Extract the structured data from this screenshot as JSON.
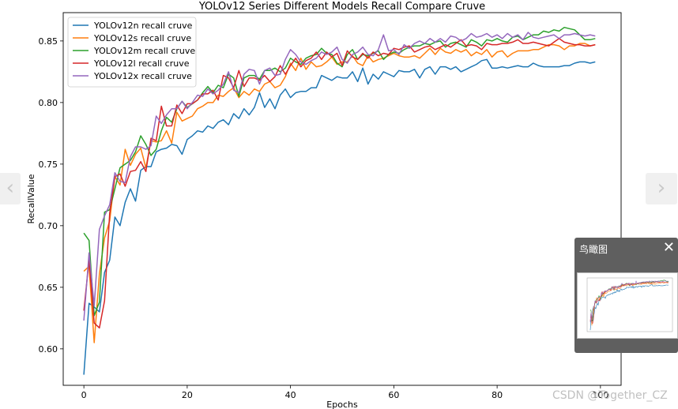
{
  "chart_data": {
    "type": "line",
    "title": "YOLOv12 Series Different Models Recall Compare Cruve",
    "xlabel": "Epochs",
    "ylabel": "RecallValue",
    "xlim": [
      -4,
      104
    ],
    "ylim": [
      0.5704,
      0.873
    ],
    "xticks": [
      0,
      20,
      40,
      60,
      80,
      100
    ],
    "yticks": [
      0.6,
      0.65,
      0.7,
      0.75,
      0.8,
      0.85
    ],
    "ytick_labels": [
      "0.60",
      "0.65",
      "0.70",
      "0.75",
      "0.80",
      "0.85"
    ],
    "grid": false,
    "legend_position": "upper-left",
    "series": [
      {
        "name": "YOLOv12n recall cruve",
        "color": "#1f77b4",
        "values": [
          0.579,
          0.637,
          0.634,
          0.63,
          0.662,
          0.672,
          0.707,
          0.7,
          0.719,
          0.73,
          0.72,
          0.745,
          0.748,
          0.748,
          0.76,
          0.762,
          0.763,
          0.766,
          0.765,
          0.758,
          0.77,
          0.773,
          0.777,
          0.776,
          0.781,
          0.779,
          0.784,
          0.786,
          0.782,
          0.791,
          0.787,
          0.795,
          0.79,
          0.796,
          0.808,
          0.796,
          0.803,
          0.795,
          0.806,
          0.811,
          0.804,
          0.808,
          0.809,
          0.809,
          0.812,
          0.812,
          0.822,
          0.82,
          0.818,
          0.821,
          0.82,
          0.82,
          0.825,
          0.817,
          0.828,
          0.815,
          0.823,
          0.819,
          0.825,
          0.823,
          0.821,
          0.826,
          0.825,
          0.825,
          0.827,
          0.82,
          0.827,
          0.829,
          0.823,
          0.829,
          0.829,
          0.827,
          0.829,
          0.825,
          0.827,
          0.829,
          0.831,
          0.834,
          0.835,
          0.828,
          0.828,
          0.829,
          0.828,
          0.829,
          0.83,
          0.829,
          0.829,
          0.832,
          0.83,
          0.829,
          0.829,
          0.829,
          0.829,
          0.83,
          0.83,
          0.832,
          0.833,
          0.833,
          0.832,
          0.833
        ]
      },
      {
        "name": "YOLOv12s recall cruve",
        "color": "#ff7f0e",
        "values": [
          0.663,
          0.667,
          0.605,
          0.661,
          0.69,
          0.704,
          0.74,
          0.733,
          0.762,
          0.749,
          0.758,
          0.763,
          0.747,
          0.769,
          0.768,
          0.769,
          0.777,
          0.767,
          0.792,
          0.785,
          0.787,
          0.789,
          0.795,
          0.797,
          0.8,
          0.8,
          0.806,
          0.805,
          0.809,
          0.812,
          0.804,
          0.809,
          0.806,
          0.811,
          0.809,
          0.815,
          0.817,
          0.812,
          0.814,
          0.821,
          0.832,
          0.826,
          0.836,
          0.827,
          0.833,
          0.829,
          0.83,
          0.833,
          0.837,
          0.831,
          0.833,
          0.833,
          0.838,
          0.832,
          0.83,
          0.838,
          0.833,
          0.835,
          0.836,
          0.838,
          0.84,
          0.838,
          0.837,
          0.837,
          0.838,
          0.836,
          0.84,
          0.844,
          0.839,
          0.844,
          0.841,
          0.84,
          0.843,
          0.841,
          0.843,
          0.838,
          0.841,
          0.839,
          0.843,
          0.837,
          0.841,
          0.842,
          0.837,
          0.84,
          0.842,
          0.842,
          0.842,
          0.843,
          0.843,
          0.845,
          0.847,
          0.847,
          0.846,
          0.843,
          0.846,
          0.846,
          0.848,
          0.848,
          0.846,
          0.847
        ]
      },
      {
        "name": "YOLOv12m recall cruve",
        "color": "#2ca02c",
        "values": [
          0.694,
          0.688,
          0.627,
          0.638,
          0.711,
          0.713,
          0.73,
          0.747,
          0.75,
          0.753,
          0.76,
          0.773,
          0.766,
          0.757,
          0.762,
          0.777,
          0.788,
          0.784,
          0.795,
          0.801,
          0.796,
          0.799,
          0.802,
          0.808,
          0.813,
          0.808,
          0.814,
          0.812,
          0.823,
          0.82,
          0.805,
          0.82,
          0.822,
          0.822,
          0.819,
          0.826,
          0.826,
          0.828,
          0.825,
          0.828,
          0.836,
          0.833,
          0.831,
          0.836,
          0.838,
          0.839,
          0.844,
          0.84,
          0.839,
          0.832,
          0.829,
          0.839,
          0.843,
          0.835,
          0.839,
          0.838,
          0.84,
          0.842,
          0.835,
          0.839,
          0.841,
          0.84,
          0.843,
          0.845,
          0.846,
          0.846,
          0.848,
          0.847,
          0.849,
          0.85,
          0.845,
          0.848,
          0.849,
          0.847,
          0.845,
          0.851,
          0.849,
          0.846,
          0.851,
          0.85,
          0.852,
          0.85,
          0.849,
          0.853,
          0.854,
          0.851,
          0.853,
          0.855,
          0.855,
          0.858,
          0.857,
          0.859,
          0.858,
          0.861,
          0.86,
          0.859,
          0.855,
          0.851,
          0.851,
          0.852
        ]
      },
      {
        "name": "YOLOv12l recall cruve",
        "color": "#d62728",
        "values": [
          0.631,
          0.672,
          0.621,
          0.617,
          0.639,
          0.71,
          0.74,
          0.742,
          0.732,
          0.744,
          0.745,
          0.752,
          0.744,
          0.771,
          0.769,
          0.797,
          0.781,
          0.781,
          0.798,
          0.791,
          0.799,
          0.799,
          0.802,
          0.807,
          0.807,
          0.81,
          0.802,
          0.822,
          0.82,
          0.812,
          0.826,
          0.813,
          0.82,
          0.82,
          0.818,
          0.822,
          0.817,
          0.821,
          0.83,
          0.823,
          0.83,
          0.836,
          0.829,
          0.834,
          0.836,
          0.841,
          0.835,
          0.841,
          0.837,
          0.84,
          0.83,
          0.842,
          0.837,
          0.835,
          0.84,
          0.836,
          0.841,
          0.838,
          0.84,
          0.839,
          0.844,
          0.843,
          0.845,
          0.846,
          0.841,
          0.843,
          0.845,
          0.846,
          0.843,
          0.845,
          0.847,
          0.845,
          0.848,
          0.851,
          0.846,
          0.847,
          0.846,
          0.843,
          0.848,
          0.847,
          0.847,
          0.848,
          0.848,
          0.849,
          0.851,
          0.848,
          0.848,
          0.849,
          0.848,
          0.847,
          0.846,
          0.849,
          0.852,
          0.849,
          0.848,
          0.847,
          0.847,
          0.846,
          0.846,
          0.847
        ]
      },
      {
        "name": "YOLOv12x recall cruve",
        "color": "#9467bd",
        "values": [
          0.623,
          0.678,
          0.635,
          0.697,
          0.708,
          0.717,
          0.743,
          0.736,
          0.735,
          0.756,
          0.764,
          0.764,
          0.762,
          0.765,
          0.789,
          0.783,
          0.79,
          0.795,
          0.795,
          0.801,
          0.795,
          0.8,
          0.806,
          0.805,
          0.811,
          0.807,
          0.81,
          0.815,
          0.825,
          0.81,
          0.808,
          0.823,
          0.827,
          0.826,
          0.815,
          0.826,
          0.828,
          0.822,
          0.823,
          0.835,
          0.843,
          0.839,
          0.833,
          0.831,
          0.834,
          0.836,
          0.841,
          0.839,
          0.841,
          0.845,
          0.835,
          0.832,
          0.839,
          0.841,
          0.845,
          0.839,
          0.838,
          0.843,
          0.855,
          0.842,
          0.843,
          0.839,
          0.847,
          0.844,
          0.848,
          0.85,
          0.848,
          0.852,
          0.849,
          0.852,
          0.849,
          0.854,
          0.853,
          0.85,
          0.852,
          0.856,
          0.853,
          0.854,
          0.856,
          0.853,
          0.855,
          0.852,
          0.856,
          0.853,
          0.855,
          0.851,
          0.857,
          0.853,
          0.852,
          0.853,
          0.854,
          0.855,
          0.852,
          0.855,
          0.855,
          0.856,
          0.855,
          0.854,
          0.855,
          0.854
        ]
      }
    ]
  },
  "nav": {
    "prev_glyph": "‹",
    "next_glyph": "›"
  },
  "overview": {
    "title": "鸟瞰图",
    "close_glyph": "✕"
  },
  "watermark": "CSDN @Together_CZ"
}
